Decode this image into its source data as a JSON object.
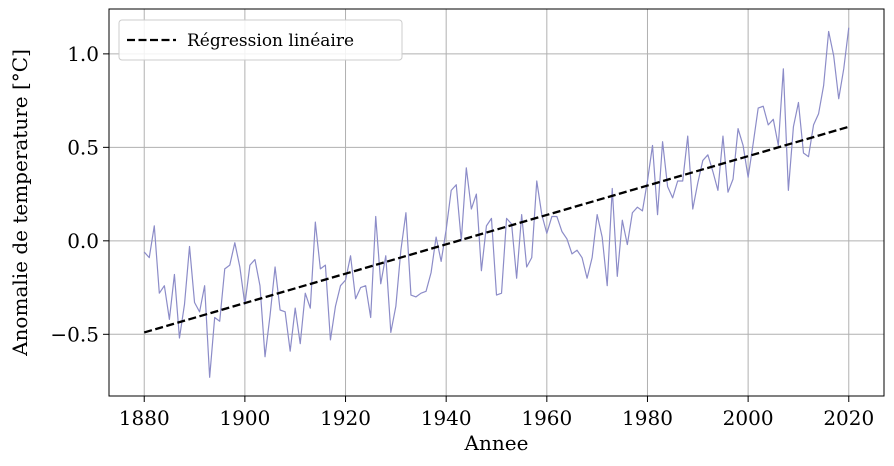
{
  "chart_data": {
    "type": "line",
    "xlabel": "Annee",
    "ylabel": "Anomalie de temperature [°C]",
    "xlim": [
      1873,
      2027
    ],
    "ylim": [
      -0.83,
      1.24
    ],
    "xticks": [
      1880,
      1900,
      1920,
      1940,
      1960,
      1980,
      2000,
      2020
    ],
    "yticks": [
      -0.5,
      0.0,
      0.5,
      1.0
    ],
    "xtick_labels": [
      "1880",
      "1900",
      "1920",
      "1940",
      "1960",
      "1980",
      "2000",
      "2020"
    ],
    "ytick_labels": [
      "−0.5",
      "0.0",
      "0.5",
      "1.0"
    ],
    "grid": true,
    "legend_position": "top-left",
    "series": [
      {
        "color": "#8c8cc8",
        "style": "solid",
        "x_start": 1880,
        "x_step": 1,
        "values": [
          -0.06,
          -0.09,
          0.08,
          -0.28,
          -0.24,
          -0.42,
          -0.18,
          -0.52,
          -0.34,
          -0.03,
          -0.33,
          -0.38,
          -0.24,
          -0.73,
          -0.41,
          -0.43,
          -0.15,
          -0.13,
          -0.01,
          -0.14,
          -0.34,
          -0.13,
          -0.1,
          -0.24,
          -0.62,
          -0.4,
          -0.14,
          -0.37,
          -0.38,
          -0.59,
          -0.36,
          -0.55,
          -0.28,
          -0.36,
          0.1,
          -0.15,
          -0.13,
          -0.53,
          -0.35,
          -0.24,
          -0.21,
          -0.08,
          -0.31,
          -0.25,
          -0.24,
          -0.41,
          0.13,
          -0.23,
          -0.08,
          -0.49,
          -0.35,
          -0.05,
          0.15,
          -0.29,
          -0.3,
          -0.28,
          -0.27,
          -0.17,
          0.02,
          -0.11,
          0.06,
          0.27,
          0.3,
          0.0,
          0.39,
          0.17,
          0.25,
          -0.16,
          0.08,
          0.12,
          -0.29,
          -0.28,
          0.12,
          0.09,
          -0.2,
          0.14,
          -0.14,
          -0.09,
          0.32,
          0.14,
          0.04,
          0.13,
          0.13,
          0.05,
          0.01,
          -0.07,
          -0.05,
          -0.09,
          -0.2,
          -0.09,
          0.14,
          0.02,
          -0.24,
          0.28,
          -0.19,
          0.11,
          -0.02,
          0.15,
          0.18,
          0.16,
          0.32,
          0.51,
          0.14,
          0.53,
          0.29,
          0.23,
          0.32,
          0.32,
          0.56,
          0.17,
          0.31,
          0.43,
          0.46,
          0.37,
          0.27,
          0.56,
          0.26,
          0.33,
          0.6,
          0.51,
          0.34,
          0.52,
          0.71,
          0.72,
          0.62,
          0.65,
          0.51,
          0.92,
          0.27,
          0.61,
          0.74,
          0.47,
          0.45,
          0.62,
          0.68,
          0.83,
          1.12,
          0.99,
          0.76,
          0.92,
          1.14
        ]
      },
      {
        "name": "Régression linéaire",
        "color": "#000000",
        "style": "dashed",
        "x": [
          1880,
          2020
        ],
        "values": [
          -0.49,
          0.61
        ]
      }
    ]
  }
}
